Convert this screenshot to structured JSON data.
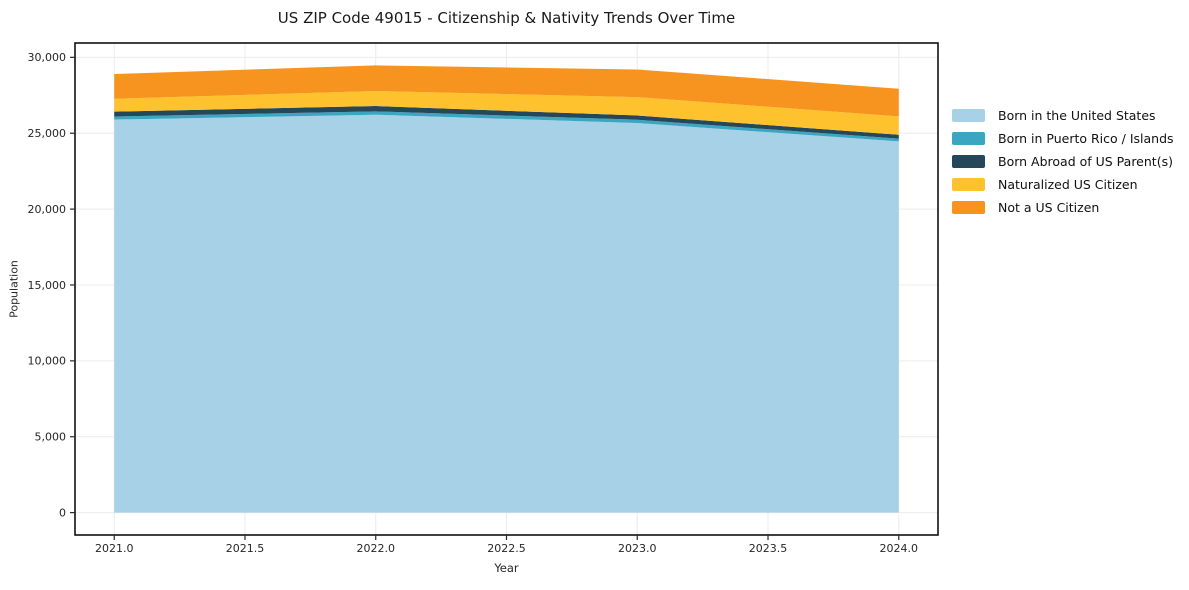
{
  "figure": {
    "title": "US ZIP Code 49015 - Citizenship & Nativity Trends Over Time"
  },
  "chart_data": {
    "type": "area",
    "stacked": true,
    "title": "US ZIP Code 49015 - Citizenship & Nativity Trends Over Time",
    "xlabel": "Year",
    "ylabel": "Population",
    "x": [
      2021,
      2022,
      2023,
      2024
    ],
    "series": [
      {
        "name": "Born in the United States",
        "color": "#a6d1e6",
        "values": [
          25900,
          26220,
          25670,
          24460
        ]
      },
      {
        "name": "Born in Puerto Rico / Islands",
        "color": "#3ba6c1",
        "values": [
          200,
          220,
          220,
          180
        ]
      },
      {
        "name": "Born Abroad of US Parent(s)",
        "color": "#25475a",
        "values": [
          320,
          350,
          280,
          260
        ]
      },
      {
        "name": "Naturalized US Citizen",
        "color": "#fdc22d",
        "values": [
          850,
          990,
          1210,
          1210
        ]
      },
      {
        "name": "Not a US Citizen",
        "color": "#f7941f",
        "values": [
          1630,
          1690,
          1820,
          1820
        ]
      }
    ],
    "totals": [
      28900,
      29470,
      29200,
      27930
    ],
    "xlim": [
      2020.85,
      2024.15
    ],
    "ylim": [
      -1475,
      30945
    ],
    "x_ticks": {
      "values": [
        2021,
        2021.5,
        2022,
        2022.5,
        2023,
        2023.5,
        2024
      ],
      "labels": [
        "2021.0",
        "2021.5",
        "2022.0",
        "2022.5",
        "2023.0",
        "2023.5",
        "2024.0"
      ]
    },
    "y_ticks": {
      "values": [
        0,
        5000,
        10000,
        15000,
        20000,
        25000,
        30000
      ],
      "labels": [
        "0",
        "5,000",
        "10,000",
        "15,000",
        "20,000",
        "25,000",
        "30,000"
      ]
    },
    "grid": true,
    "legend_position": "right",
    "colors": {
      "grid": "#ececec",
      "frame": "#111111",
      "tick": "#262626",
      "tick_label": "#262626",
      "background": "#ffffff"
    }
  }
}
